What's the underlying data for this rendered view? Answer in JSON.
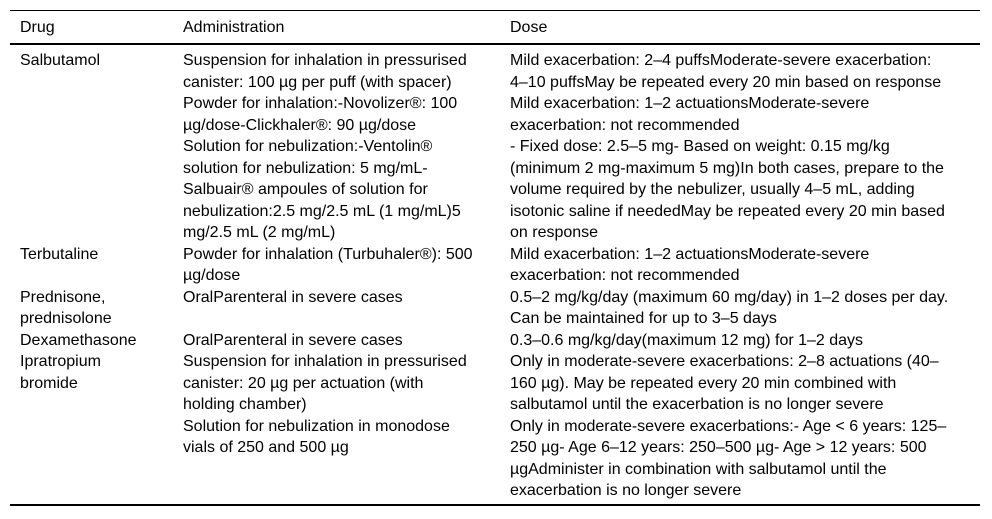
{
  "table": {
    "headers": {
      "drug": "Drug",
      "administration": "Administration",
      "dose": "Dose"
    },
    "rows": [
      {
        "drug": "Salbutamol",
        "entries": [
          {
            "administration": "Suspension for inhalation in pressurised canister: 100 µg per puff (with spacer)",
            "dose": "Mild exacerbation: 2–4 puffsModerate-severe exacerbation: 4–10 puffsMay be repeated every 20 min based on response"
          },
          {
            "administration": "Powder for inhalation:-Novolizer®: 100 µg/dose-Clickhaler®: 90 µg/dose",
            "dose": "Mild exacerbation: 1–2 actuationsModerate-severe exacerbation: not recommended"
          },
          {
            "administration": "Solution for nebulization:-Ventolin® solution for nebulization: 5 mg/mL-Salbuair® ampoules of solution for nebulization:2.5 mg/2.5 mL (1 mg/mL)5 mg/2.5 mL (2 mg/mL)",
            "dose": "- Fixed dose: 2.5–5 mg- Based on weight: 0.15 mg/kg (minimum 2 mg-maximum 5 mg)In both cases, prepare to the volume required by the nebulizer, usually 4–5 mL, adding isotonic saline if neededMay be repeated every 20 min based on response"
          }
        ]
      },
      {
        "drug": "Terbutaline",
        "entries": [
          {
            "administration": "Powder for inhalation (Turbuhaler®): 500 µg/dose",
            "dose": "Mild exacerbation: 1–2 actuationsModerate-severe exacerbation: not recommended"
          }
        ]
      },
      {
        "drug": "Prednisone, prednisolone",
        "entries": [
          {
            "administration": "OralParenteral in severe cases",
            "dose": "0.5–2 mg/kg/day (maximum 60 mg/day) in 1–2 doses per day. Can be maintained for up to 3–5 days"
          }
        ]
      },
      {
        "drug": "Dexamethasone",
        "entries": [
          {
            "administration": "OralParenteral in severe cases",
            "dose": "0.3–0.6 mg/kg/day(maximum 12 mg) for 1–2 days"
          }
        ]
      },
      {
        "drug": "Ipratropium bromide",
        "entries": [
          {
            "administration": "Suspension for inhalation in pressurised canister: 20 µg per actuation (with holding chamber)",
            "dose": "Only in moderate-severe exacerbations: 2–8 actuations (40–160 µg). May be repeated every 20 min combined with salbutamol until the exacerbation is no longer severe"
          },
          {
            "administration": "Solution for nebulization in monodose vials of 250 and 500 µg",
            "dose": "Only in moderate-severe exacerbations:- Age < 6 years: 125–250 µg- Age 6–12 years: 250–500 µg- Age > 12 years: 500 µgAdminister in combination with salbutamol until the exacerbation is no longer severe"
          }
        ]
      }
    ]
  }
}
